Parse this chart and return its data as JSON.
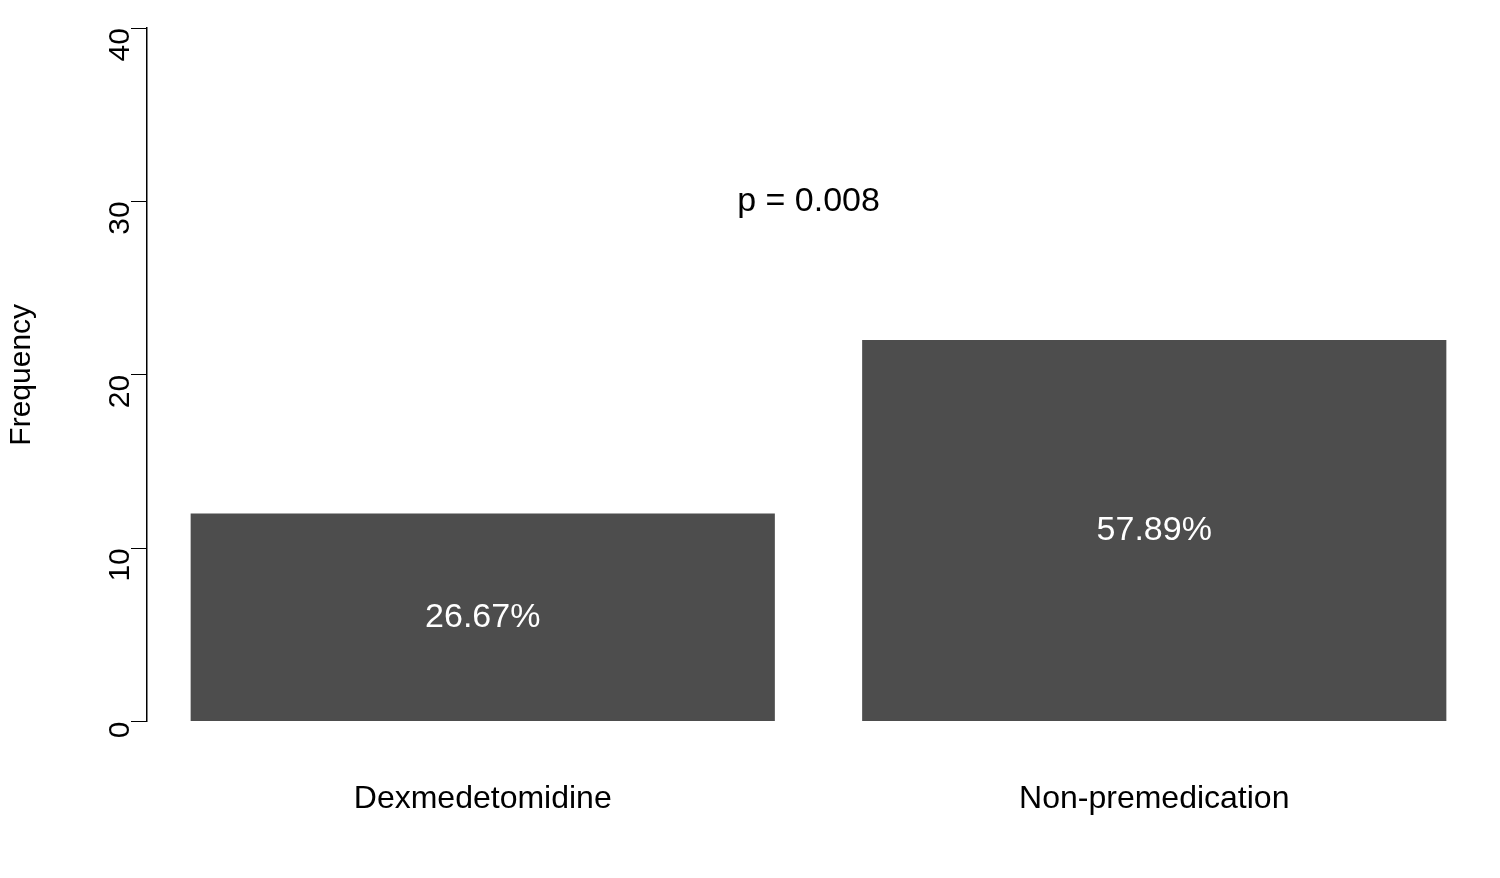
{
  "chart_data": {
    "type": "bar",
    "ylabel": "Frequency",
    "categories": [
      "Dexmedetomidine",
      "Non-premedication"
    ],
    "values": [
      12,
      22
    ],
    "color": "#4d4d4d",
    "ylim": [
      0,
      40
    ],
    "yticks": [
      0,
      10,
      20,
      30,
      40
    ],
    "grid": false,
    "legend": false,
    "annotations": [
      "p = 0.008",
      "26.67%",
      "57.89%"
    ]
  }
}
